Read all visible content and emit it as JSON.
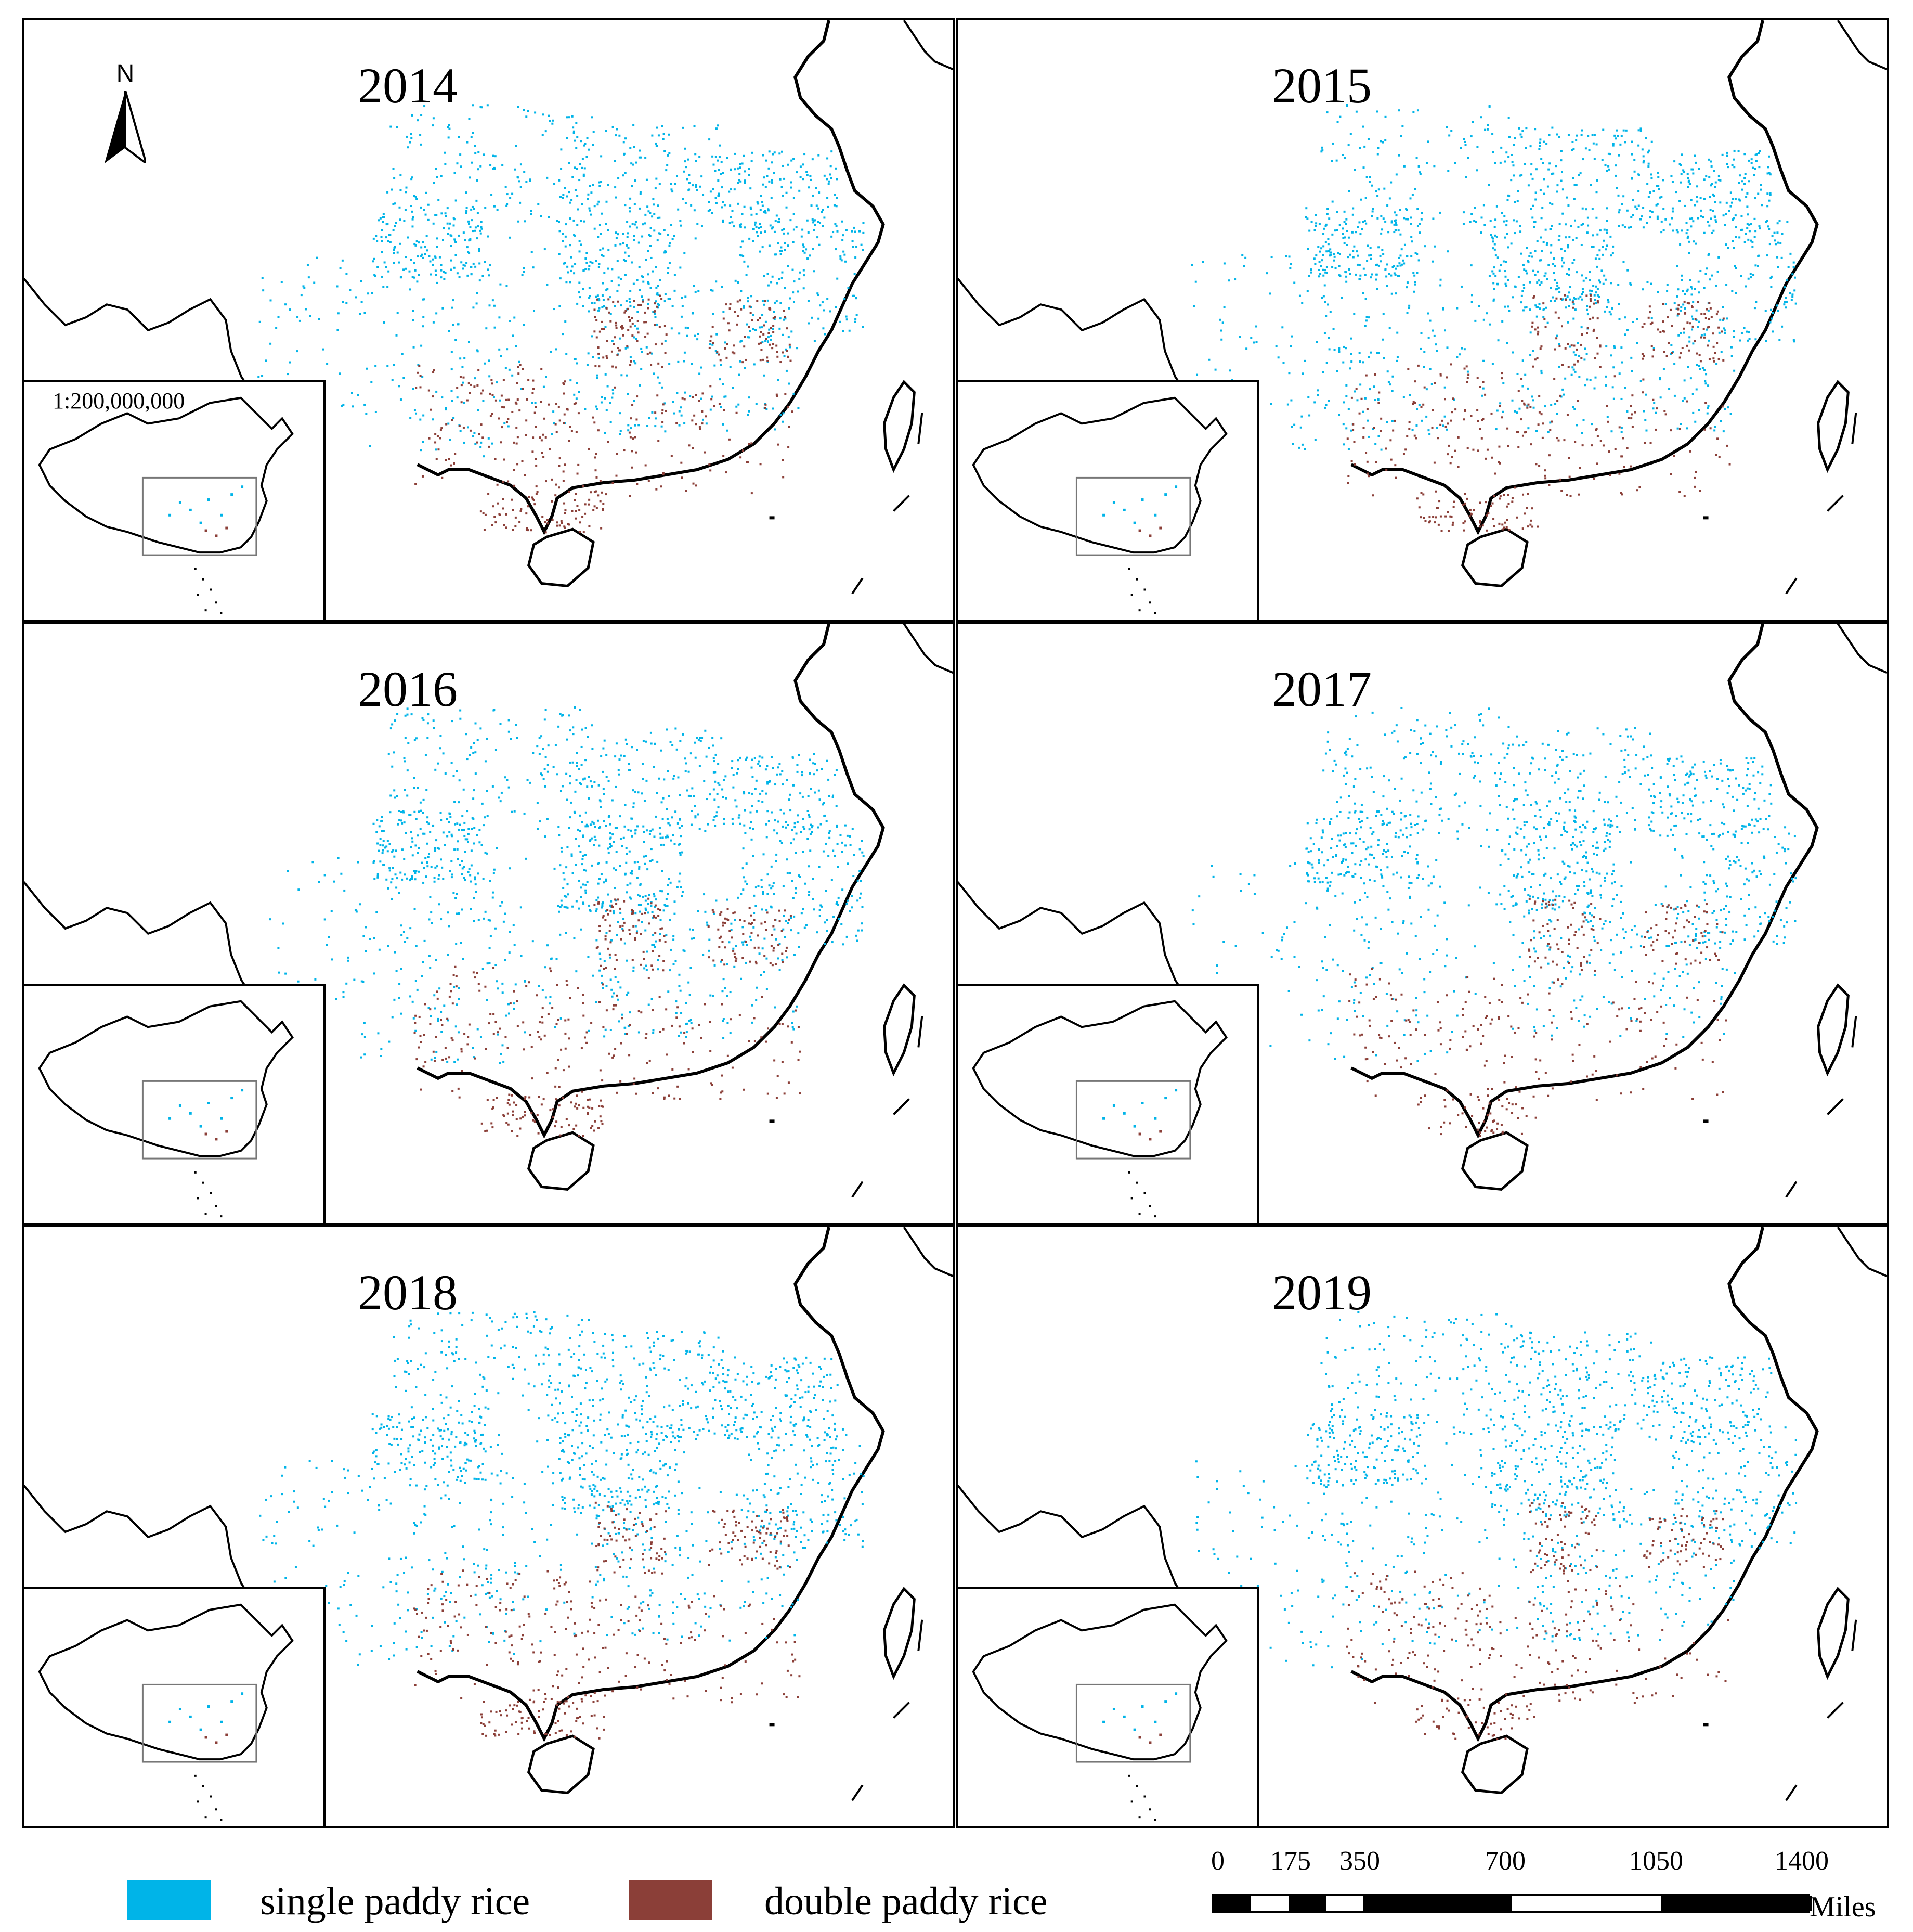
{
  "figure": {
    "panels": [
      {
        "year": "2014",
        "single_density": 1.0,
        "double_density": 1.0,
        "show_scale_text": true,
        "show_north": true
      },
      {
        "year": "2015",
        "single_density": 1.05,
        "double_density": 0.9,
        "show_scale_text": false,
        "show_north": false
      },
      {
        "year": "2016",
        "single_density": 1.0,
        "double_density": 0.9,
        "show_scale_text": false,
        "show_north": false
      },
      {
        "year": "2017",
        "single_density": 0.9,
        "double_density": 0.7,
        "show_scale_text": false,
        "show_north": false
      },
      {
        "year": "2018",
        "single_density": 1.0,
        "double_density": 0.9,
        "show_scale_text": false,
        "show_north": false
      },
      {
        "year": "2019",
        "single_density": 0.95,
        "double_density": 0.85,
        "show_scale_text": false,
        "show_north": false
      }
    ],
    "inset_scale_text": "1:200,000,000",
    "north_label": "N"
  },
  "legend": {
    "single": {
      "label": "single paddy rice",
      "color": "#00B4E8"
    },
    "double": {
      "label": "double paddy rice",
      "color": "#8B3F38"
    }
  },
  "scalebar": {
    "ticks": [
      "0",
      "175",
      "350",
      "700",
      "1050",
      "1400"
    ],
    "unit": "Miles"
  }
}
